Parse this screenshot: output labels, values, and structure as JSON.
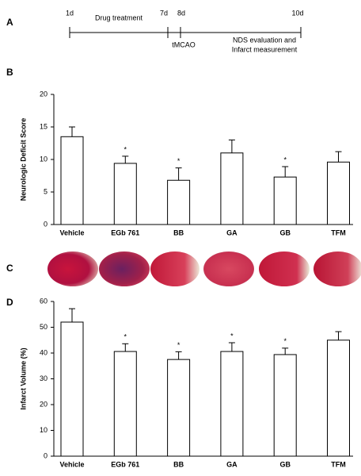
{
  "panel_labels": [
    "A",
    "B",
    "C",
    "D"
  ],
  "timeline": {
    "days": [
      "1d",
      "7d",
      "8d",
      "10d"
    ],
    "phase": "Drug treatment",
    "event": "tMCAO",
    "outcome": [
      "NDS evaluation and",
      "Infarct measurement"
    ]
  },
  "chart_data": [
    {
      "type": "bar",
      "ylabel": "Neurologic Deficit Score",
      "categories": [
        "Vehicle",
        "EGb 761",
        "BB",
        "GA",
        "GB",
        "TFM"
      ],
      "values": [
        13.5,
        9.4,
        6.8,
        11.0,
        7.3,
        9.6
      ],
      "errors": [
        1.5,
        1.1,
        1.9,
        2.0,
        1.6,
        1.6
      ],
      "significance": [
        null,
        "*",
        "*",
        null,
        "*",
        null
      ],
      "color": "#ffffff",
      "ylim": [
        0,
        20
      ],
      "yticks": [
        0,
        5,
        10,
        15,
        20
      ]
    },
    {
      "type": "bar",
      "ylabel": "Infarct Volume (%)",
      "categories": [
        "Vehicle",
        "EGb 761",
        "BB",
        "GA",
        "GB",
        "TFM"
      ],
      "values": [
        52,
        40.6,
        37.5,
        40.6,
        39.4,
        45
      ],
      "errors": [
        5.2,
        3,
        3,
        3.4,
        2.5,
        3.3
      ],
      "significance": [
        null,
        "*",
        "*",
        "*",
        "*",
        null
      ],
      "color": "#ffffff",
      "ylim": [
        0,
        60
      ],
      "yticks": [
        0,
        10,
        20,
        30,
        40,
        50,
        60
      ]
    }
  ]
}
